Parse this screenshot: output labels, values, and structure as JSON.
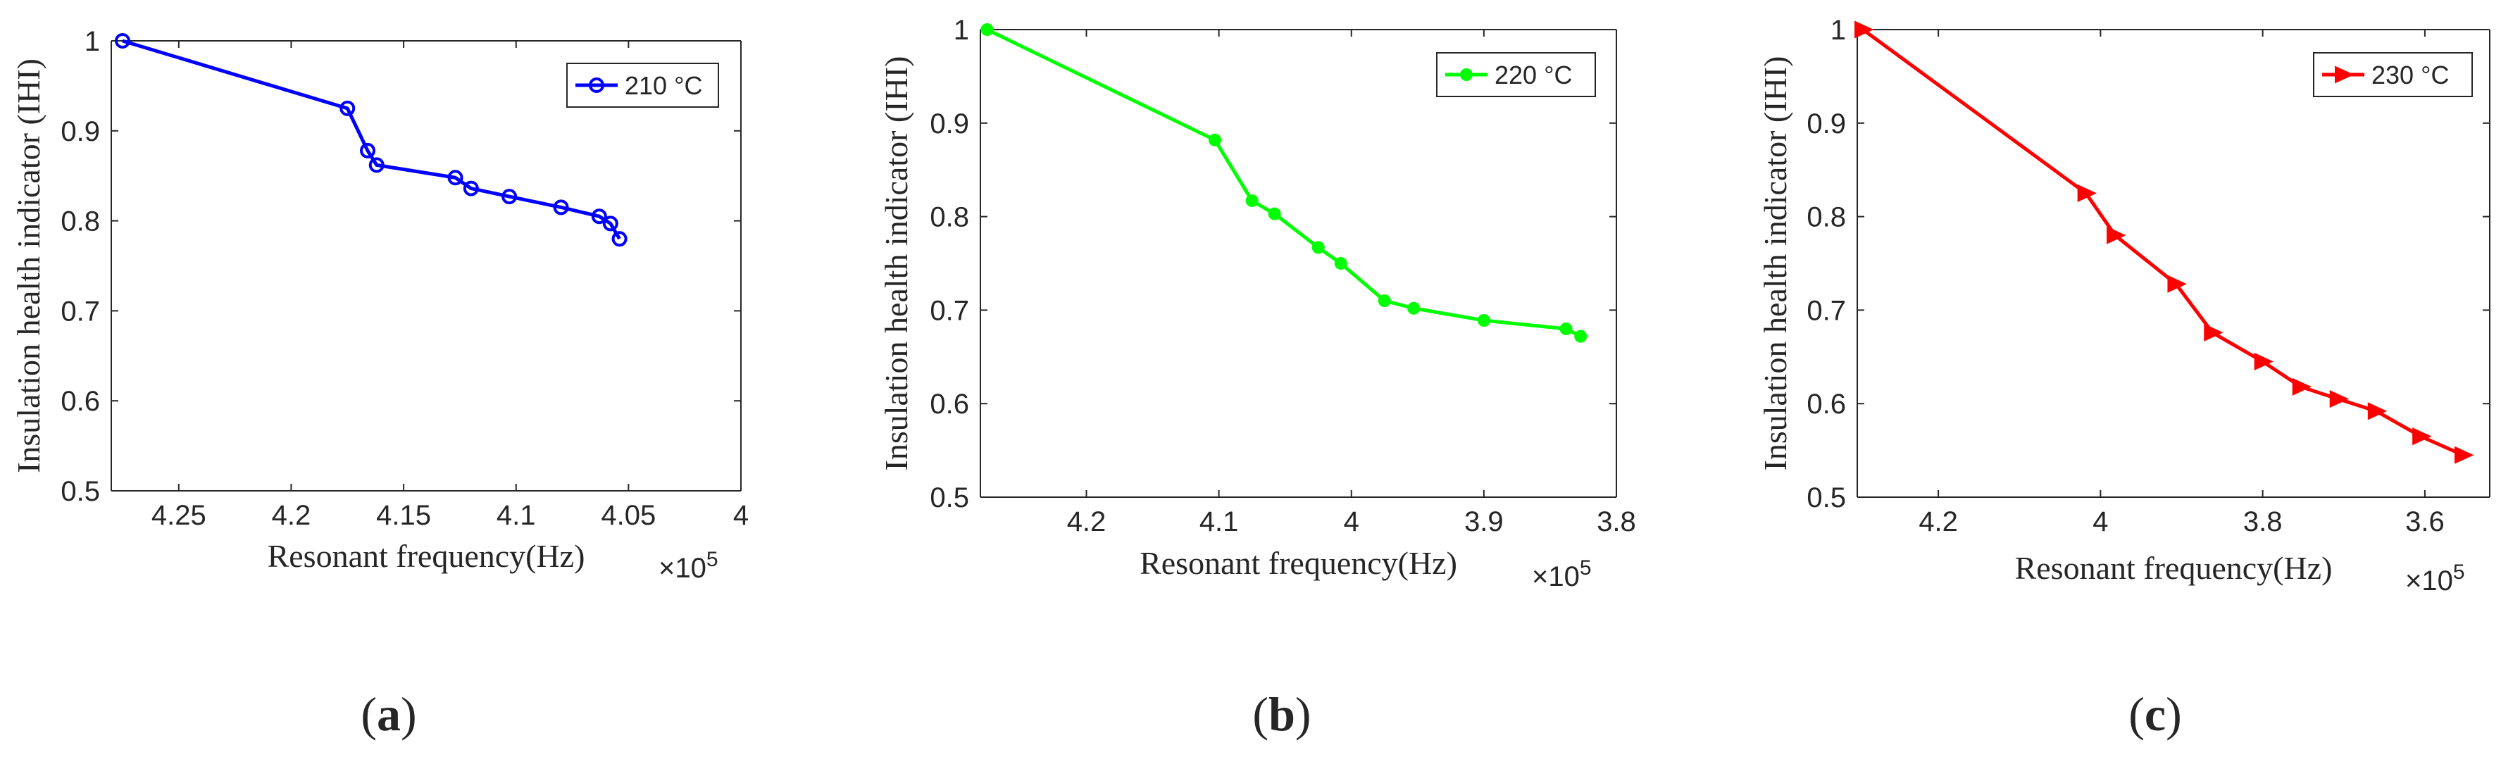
{
  "chart_data": [
    {
      "type": "line",
      "panel": "a",
      "caption": {
        "open": "(",
        "letter": "a",
        "close": ")"
      },
      "xlabel": "Resonant frequency(Hz)",
      "ylabel": "Insulation health indicator (IHI)",
      "x_scale_label": "×10",
      "x_scale_exponent": "5",
      "x_reversed": true,
      "xlim": [
        4,
        4.28
      ],
      "ylim": [
        0.5,
        1
      ],
      "x_ticks": [
        4.25,
        4.2,
        4.15,
        4.1,
        4.05,
        4
      ],
      "x_tick_labels": [
        "4.25",
        "4.2",
        "4.15",
        "4.1",
        "4.05",
        "4"
      ],
      "y_ticks": [
        0.5,
        0.6,
        0.7,
        0.8,
        0.9,
        1
      ],
      "y_tick_labels": [
        "0.5",
        "0.6",
        "0.7",
        "0.8",
        "0.9",
        "1"
      ],
      "series": [
        {
          "name": "210 °C",
          "color": "#0000ff",
          "marker": "circle",
          "x": [
            4.275,
            4.175,
            4.166,
            4.162,
            4.127,
            4.12,
            4.103,
            4.08,
            4.063,
            4.058,
            4.054
          ],
          "y": [
            1.0,
            0.925,
            0.878,
            0.862,
            0.848,
            0.836,
            0.827,
            0.815,
            0.805,
            0.797,
            0.78
          ]
        }
      ],
      "legend": "top-right"
    },
    {
      "type": "line",
      "panel": "b",
      "caption": {
        "open": "(",
        "letter": "b",
        "close": ")"
      },
      "xlabel": "Resonant frequency(Hz)",
      "ylabel": "Insulation health indicator (IHI)",
      "x_scale_label": "×10",
      "x_scale_exponent": "5",
      "x_reversed": true,
      "xlim": [
        3.8,
        4.28
      ],
      "ylim": [
        0.5,
        1
      ],
      "x_ticks": [
        4.2,
        4.1,
        4,
        3.9,
        3.8
      ],
      "x_tick_labels": [
        "4.2",
        "4.1",
        "4",
        "3.9",
        "3.8"
      ],
      "y_ticks": [
        0.5,
        0.6,
        0.7,
        0.8,
        0.9,
        1
      ],
      "y_tick_labels": [
        "0.5",
        "0.6",
        "0.7",
        "0.8",
        "0.9",
        "1"
      ],
      "series": [
        {
          "name": "220 °C",
          "color": "#00ff00",
          "marker": "dot",
          "x": [
            4.275,
            4.103,
            4.075,
            4.058,
            4.025,
            4.008,
            3.975,
            3.953,
            3.9,
            3.838,
            3.827
          ],
          "y": [
            1.0,
            0.882,
            0.817,
            0.803,
            0.767,
            0.75,
            0.71,
            0.702,
            0.689,
            0.68,
            0.672
          ]
        }
      ],
      "legend": "top-right"
    },
    {
      "type": "line",
      "panel": "c",
      "caption": {
        "open": "(",
        "letter": "c",
        "close": ")"
      },
      "xlabel": "Resonant frequency(Hz)",
      "ylabel": "Insulation health indicator (IHI)",
      "x_scale_label": "×10",
      "x_scale_exponent": "5",
      "x_reversed": true,
      "xlim": [
        3.52,
        4.3
      ],
      "ylim": [
        0.5,
        1
      ],
      "x_ticks": [
        4.2,
        4,
        3.8,
        3.6
      ],
      "x_tick_labels": [
        "4.2",
        "4",
        "3.8",
        "3.6"
      ],
      "y_ticks": [
        0.5,
        0.6,
        0.7,
        0.8,
        0.9,
        1
      ],
      "y_tick_labels": [
        "0.5",
        "0.6",
        "0.7",
        "0.8",
        "0.9",
        "1"
      ],
      "series": [
        {
          "name": "230 °C",
          "color": "#ff0000",
          "marker": "triangle-right",
          "x": [
            4.293,
            4.018,
            3.982,
            3.907,
            3.862,
            3.8,
            3.753,
            3.707,
            3.66,
            3.605,
            3.553
          ],
          "y": [
            1.0,
            0.825,
            0.78,
            0.728,
            0.676,
            0.645,
            0.618,
            0.605,
            0.592,
            0.565,
            0.545
          ]
        }
      ],
      "legend": "top-right"
    }
  ]
}
